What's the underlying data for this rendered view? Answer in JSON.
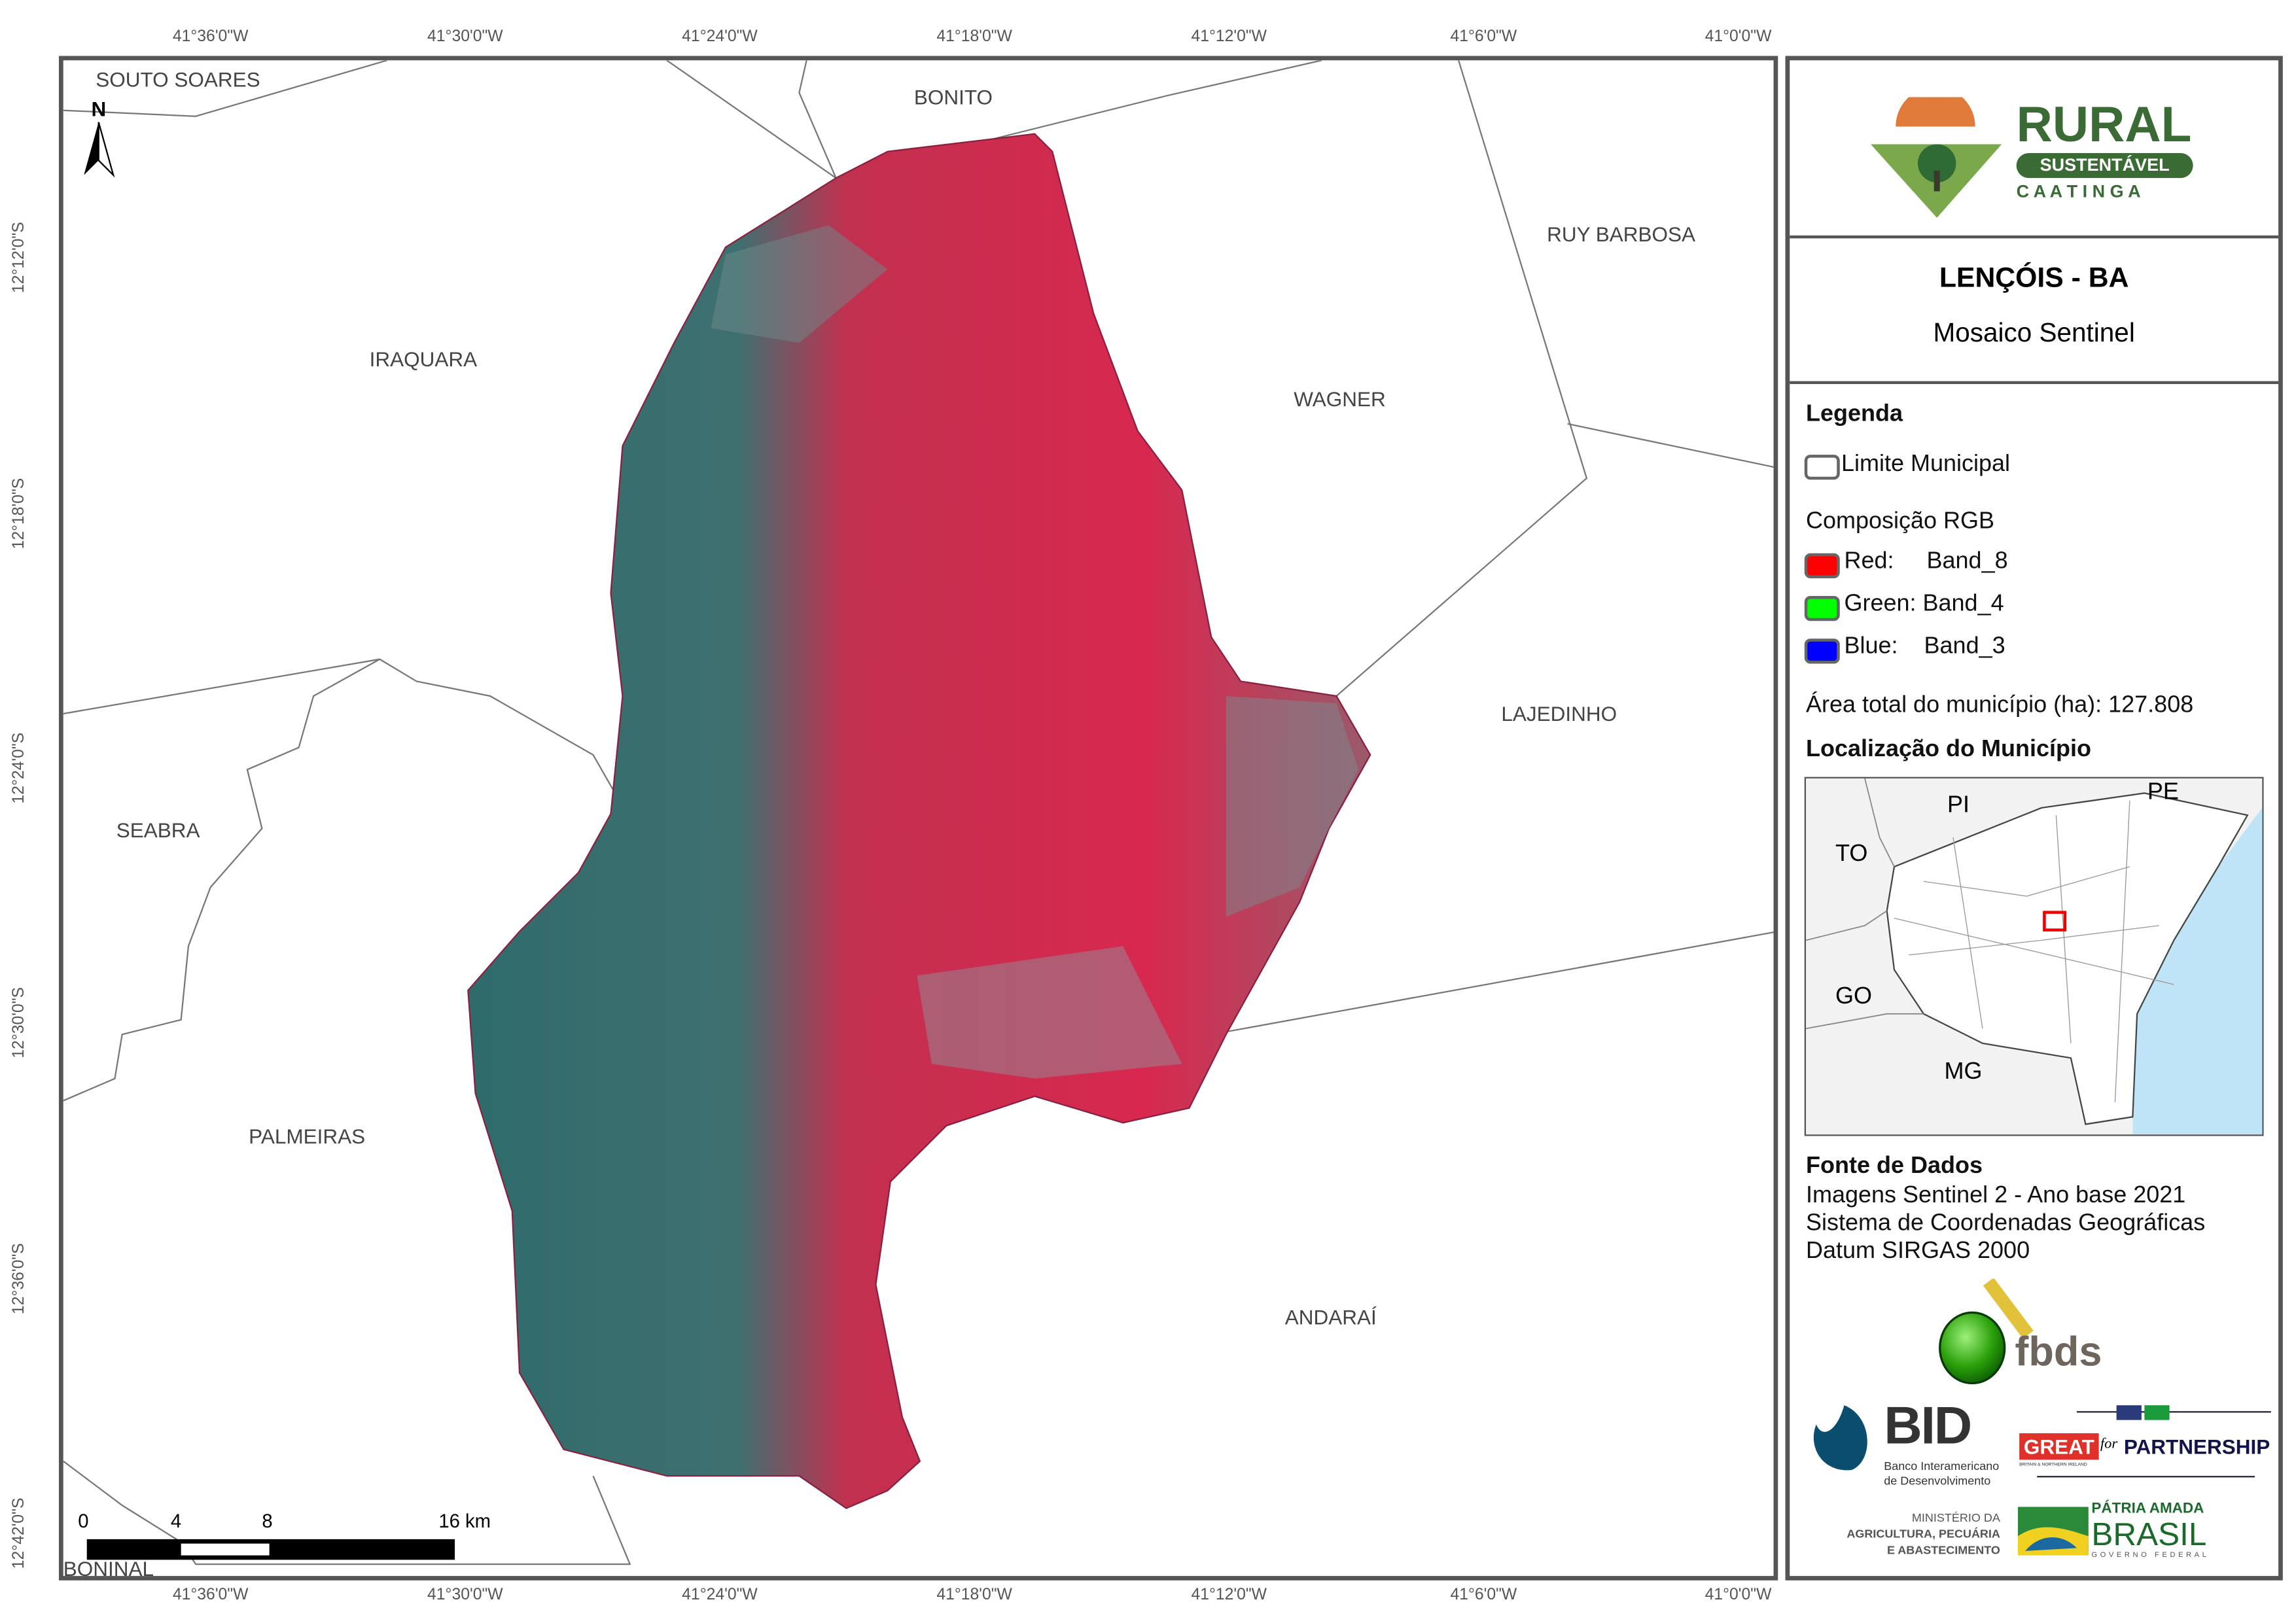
{
  "axes": {
    "longitude_ticks": [
      "41°36'0\"W",
      "41°30'0\"W",
      "41°24'0\"W",
      "41°18'0\"W",
      "41°12'0\"W",
      "41°6'0\"W",
      "41°0'0\"W"
    ],
    "latitude_ticks": [
      "12°12'0\"S",
      "12°18'0\"S",
      "12°24'0\"S",
      "12°30'0\"S",
      "12°36'0\"S",
      "12°42'0\"S"
    ]
  },
  "map": {
    "north_label": "N",
    "neighbors": [
      "SOUTO SOARES",
      "BONITO",
      "RUY BARBOSA",
      "IRAQUARA",
      "WAGNER",
      "LAJEDINHO",
      "SEABRA",
      "PALMEIRAS",
      "ANDARAÍ",
      "BONINAL"
    ],
    "scale_bar": {
      "labels": [
        "0",
        "4",
        "8",
        "16 km"
      ]
    },
    "colors": {
      "vegetation": "#d8284f",
      "bare": "#2f6b6b",
      "boundary": "#777777"
    }
  },
  "panel": {
    "logo": {
      "title": "RURAL",
      "subtitle": "SUSTENTÁVEL",
      "tagline": "C A A T I N G A"
    },
    "title": "LENÇÓIS - BA",
    "subtitle": "Mosaico Sentinel",
    "legend": {
      "heading": "Legenda",
      "limit_label": "Limite Municipal",
      "rgb_heading": "Composição RGB",
      "bands": [
        {
          "label": "Red:     Band_8",
          "color": "#ff0000"
        },
        {
          "label": "Green: Band_4",
          "color": "#00ff00"
        },
        {
          "label": "Blue:    Band_3",
          "color": "#0000ff"
        }
      ],
      "area": "Área total do município (ha): 127.808",
      "location_heading": "Localização do Município"
    },
    "inset": {
      "labels": [
        "PI",
        "PE",
        "TO",
        "GO",
        "MG"
      ],
      "ocean_color": "#bfe3f7"
    },
    "sources": {
      "heading": "Fonte de Dados",
      "lines": [
        "Imagens Sentinel 2 - Ano base 2021",
        "Sistema de Coordenadas Geográficas",
        "Datum SIRGAS 2000"
      ]
    },
    "partners": {
      "fbds": "fbds",
      "bid": "BID",
      "bid_sub1": "Banco Interamericano",
      "bid_sub2": "de Desenvolvimento",
      "great": "GREAT",
      "great_sub": "BRITAIN & NORTHERN IRELAND",
      "for": "for",
      "partnership": "PARTNERSHIP",
      "ministry1": "MINISTÉRIO DA",
      "ministry2": "AGRICULTURA, PECUÁRIA",
      "ministry3": "E ABASTECIMENTO",
      "patria": "PÁTRIA AMADA",
      "brasil": "BRASIL",
      "gov": "GOVERNO FEDERAL"
    }
  }
}
